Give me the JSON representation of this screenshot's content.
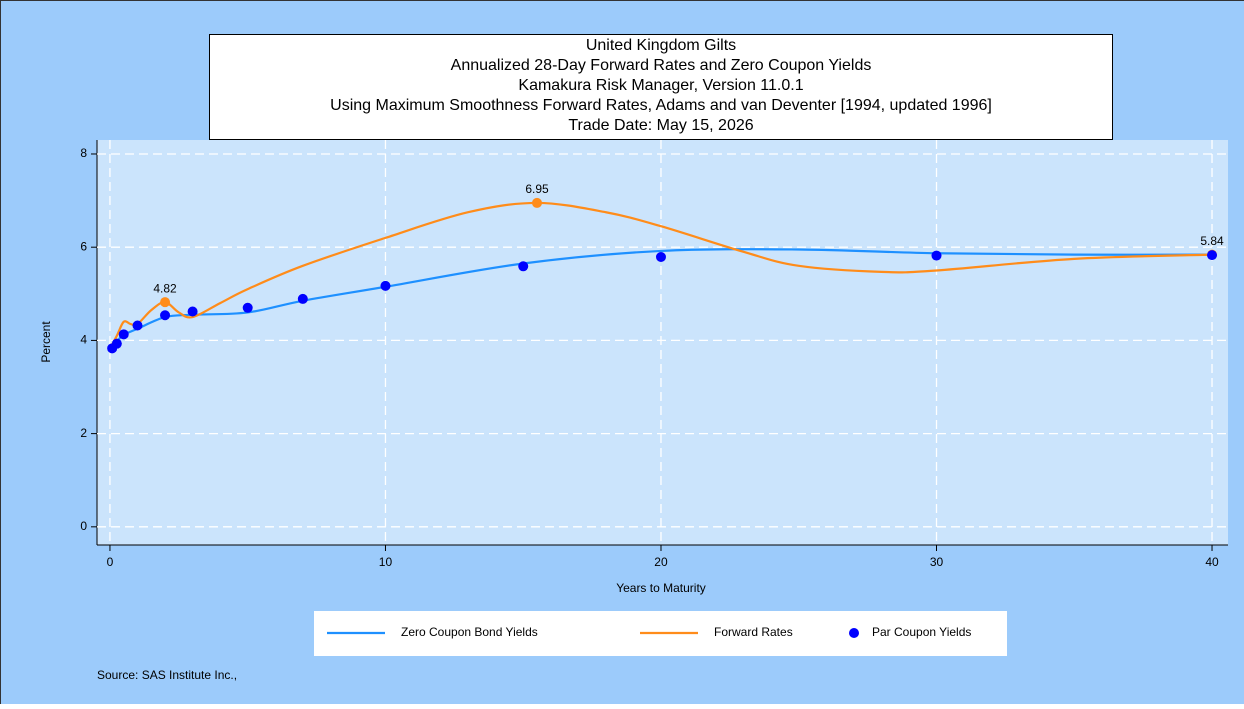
{
  "chart_data": {
    "type": "line",
    "title": [
      "United Kingdom Gilts",
      "Annualized 28-Day Forward Rates and Zero Coupon Yields",
      "Kamakura Risk Manager, Version 11.0.1",
      "Using Maximum Smoothness Forward Rates, Adams and van Deventer [1994, updated 1996]",
      "Trade Date: May 15, 2026"
    ],
    "x_label": "Years to Maturity",
    "y_label": "Percent",
    "source": "Source: SAS Institute Inc.,",
    "xlim": [
      -0.47,
      40.58
    ],
    "ylim": [
      -0.39,
      8.3
    ],
    "xticks": [
      0,
      10,
      20,
      30,
      40
    ],
    "yticks": [
      0,
      2,
      4,
      6,
      8
    ],
    "grid": true,
    "series": [
      {
        "name": "Zero Coupon Bond Yields",
        "kind": "line",
        "color": "#1e90ff",
        "x": [
          0,
          0.25,
          0.5,
          1,
          2,
          3,
          5,
          7,
          10,
          15,
          20,
          25,
          30,
          35,
          40
        ],
        "values": [
          3.83,
          3.98,
          4.12,
          4.25,
          4.5,
          4.55,
          4.6,
          4.85,
          5.15,
          5.65,
          5.92,
          5.95,
          5.87,
          5.84,
          5.84
        ]
      },
      {
        "name": "Forward Rates",
        "kind": "line",
        "color": "#ff8c1a",
        "x": [
          0,
          0.25,
          0.5,
          0.75,
          1,
          1.5,
          2,
          2.5,
          3,
          4,
          5,
          7,
          10,
          13,
          15.5,
          18,
          20,
          23,
          25,
          28,
          30,
          35,
          40
        ],
        "values": [
          3.83,
          4.1,
          4.4,
          4.35,
          4.35,
          4.65,
          4.82,
          4.6,
          4.5,
          4.8,
          5.1,
          5.6,
          6.2,
          6.75,
          6.95,
          6.75,
          6.45,
          5.9,
          5.6,
          5.47,
          5.5,
          5.75,
          5.84
        ],
        "value_labels": [
          null,
          null,
          null,
          null,
          null,
          null,
          "4.82",
          null,
          null,
          null,
          null,
          null,
          null,
          null,
          "6.95",
          null,
          null,
          null,
          null,
          null,
          null,
          null,
          "5.84"
        ]
      },
      {
        "name": "Par Coupon Yields",
        "kind": "scatter",
        "color": "#0000ff",
        "x": [
          0.08,
          0.25,
          0.5,
          1,
          2,
          3,
          5,
          7,
          10,
          15,
          20,
          30,
          40
        ],
        "values": [
          3.83,
          3.93,
          4.13,
          4.32,
          4.54,
          4.62,
          4.7,
          4.89,
          5.17,
          5.59,
          5.79,
          5.82,
          5.83
        ]
      }
    ]
  }
}
